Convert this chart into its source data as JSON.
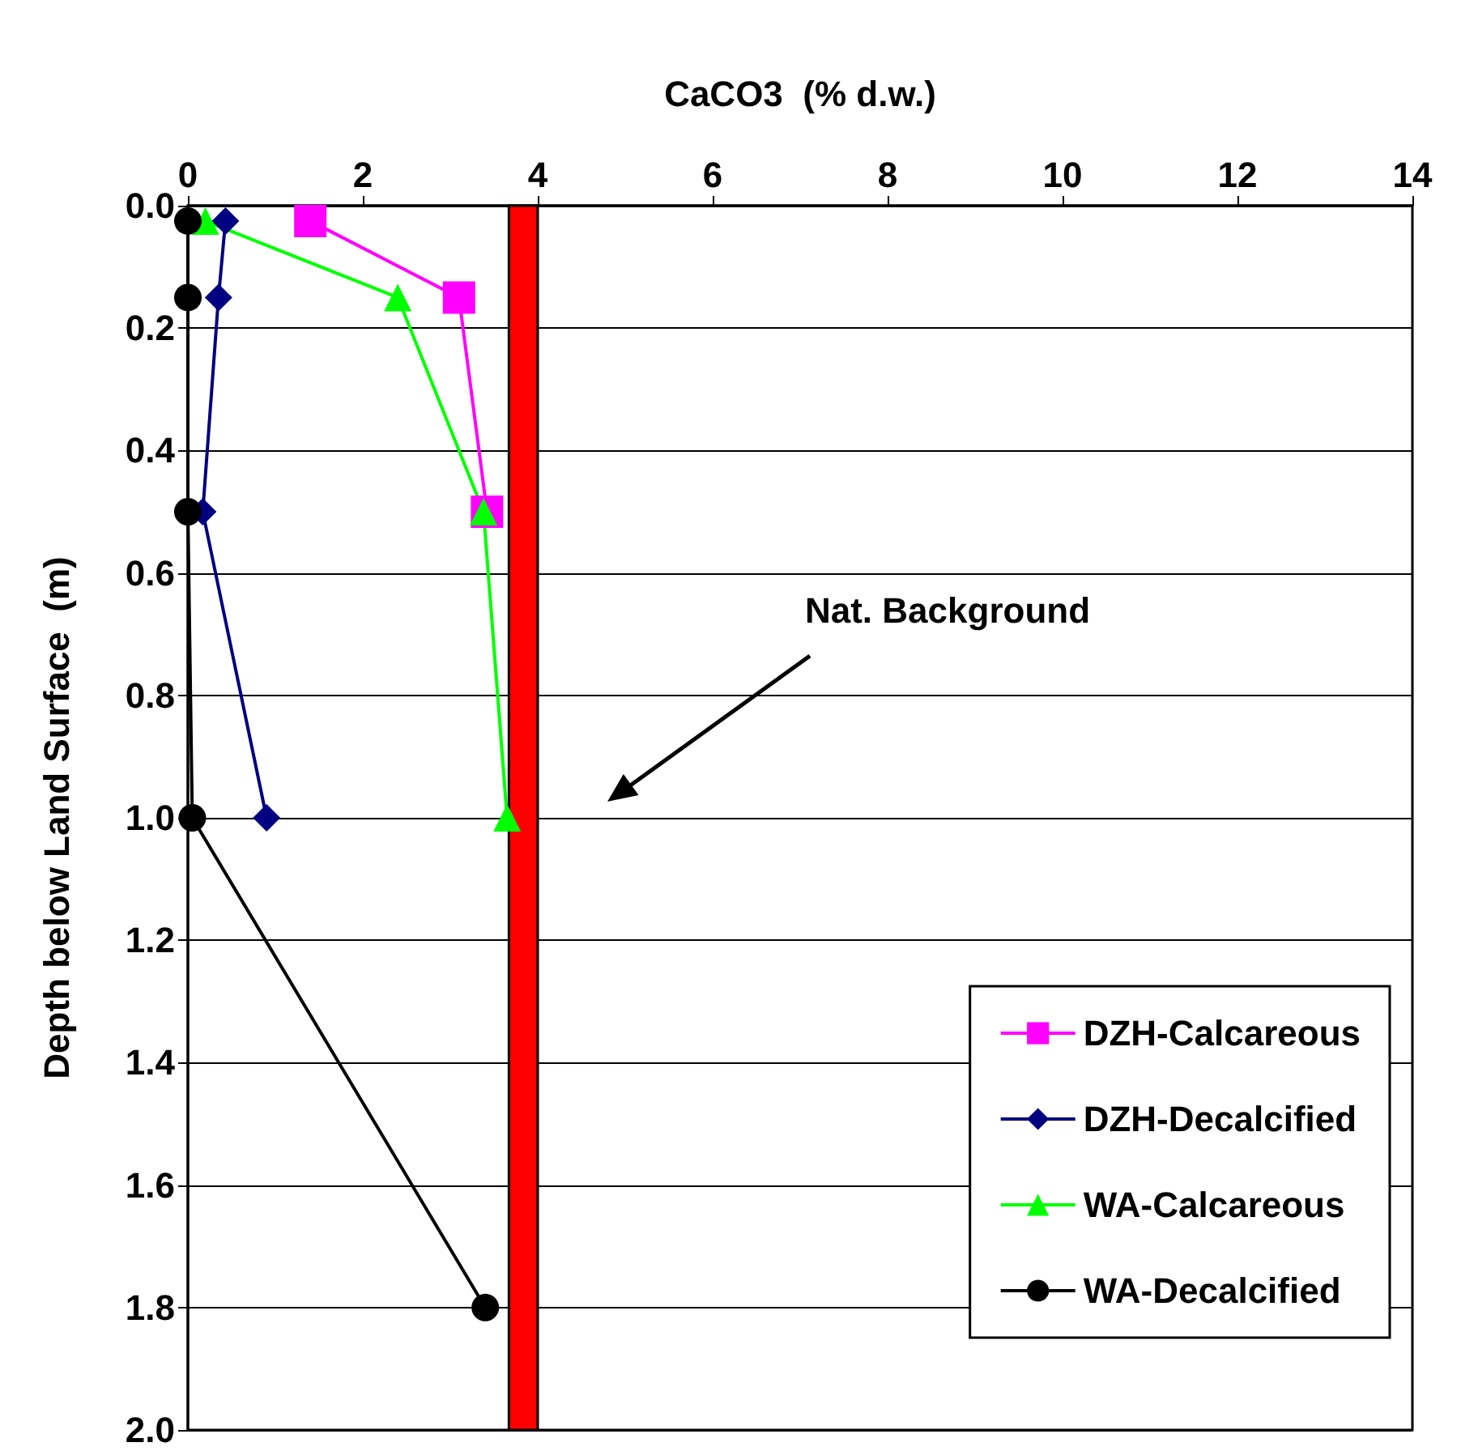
{
  "chart_data": {
    "type": "line",
    "xlabel": "CaCO3  (% d.w.)",
    "ylabel": "Depth below Land Surface  (m)",
    "xlim": [
      0,
      14
    ],
    "xticks": [
      0,
      2,
      4,
      6,
      8,
      10,
      12,
      14
    ],
    "ylim": [
      2.0,
      0.0
    ],
    "yticks": [
      {
        "value": 0,
        "label": "0.0"
      },
      {
        "value": 0.2,
        "label": "0.2"
      },
      {
        "value": 0.4,
        "label": "0.4"
      },
      {
        "value": 0.6,
        "label": "0.6"
      },
      {
        "value": 0.8,
        "label": "0.8"
      },
      {
        "value": 1.0,
        "label": "1.0"
      },
      {
        "value": 1.2,
        "label": "1.2"
      },
      {
        "value": 1.4,
        "label": "1.4"
      },
      {
        "value": 1.6,
        "label": "1.6"
      },
      {
        "value": 1.8,
        "label": "1.8"
      },
      {
        "value": 2.0,
        "label": "2.0"
      }
    ],
    "grid": "y",
    "legend": "bottom right",
    "series": [
      {
        "name": "DZH-Calcareous",
        "color": "#ff00ff",
        "marker": "square",
        "x": [
          1.4,
          3.1,
          3.42
        ],
        "values": [
          0.025,
          0.15,
          0.5
        ]
      },
      {
        "name": "DZH-Decalcified",
        "color": "#000080",
        "marker": "diamond",
        "x": [
          0.43,
          0.35,
          0.17,
          0.9
        ],
        "values": [
          0.025,
          0.15,
          0.5,
          1.0
        ]
      },
      {
        "name": "WA-Calcareous",
        "color": "#00ff00",
        "marker": "triangle",
        "x": [
          0.2,
          2.4,
          3.38,
          3.65
        ],
        "values": [
          0.025,
          0.15,
          0.5,
          1.0
        ]
      },
      {
        "name": "WA-Decalcified",
        "color": "#000000",
        "marker": "circle",
        "x": [
          0,
          0,
          0,
          0.05,
          3.4
        ],
        "values": [
          0.025,
          0.15,
          0.5,
          1.0,
          1.8
        ]
      }
    ],
    "annotations": [
      "Nat. Background"
    ],
    "bands": [
      {
        "axis": "x",
        "from": 3.67,
        "to": 4.0,
        "color": "#ff0000"
      }
    ]
  }
}
